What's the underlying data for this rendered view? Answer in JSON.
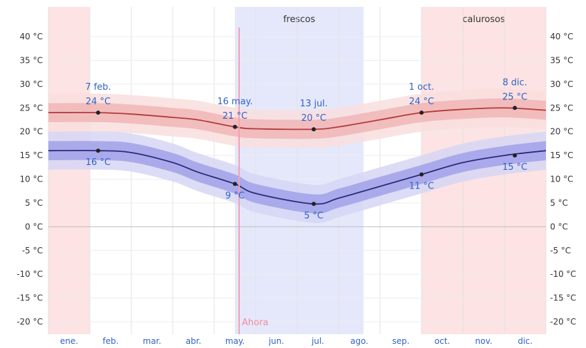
{
  "chart_data": {
    "type": "line",
    "title": "",
    "xlabel": "",
    "ylabel": "",
    "ylim": [
      -22,
      43
    ],
    "y_ticks": [
      "40 °C",
      "35 °C",
      "30 °C",
      "25 °C",
      "20 °C",
      "15 °C",
      "10 °C",
      "5 °C",
      "0 °C",
      "-5 °C",
      "-10 °C",
      "-15 °C",
      "-20 °C"
    ],
    "y_tick_values": [
      40,
      35,
      30,
      25,
      20,
      15,
      10,
      5,
      0,
      -5,
      -10,
      -15,
      -20
    ],
    "months": [
      "ene.",
      "feb.",
      "mar.",
      "abr.",
      "may.",
      "jun.",
      "jul.",
      "ago.",
      "sep.",
      "oct.",
      "nov.",
      "dic."
    ],
    "grid": true,
    "series": [
      {
        "role": "high",
        "color": "#b23a3a",
        "band_inner_color": "#f0b3b3",
        "band_outer_color": "#f9dede",
        "x": [
          0,
          1.2,
          2,
          3,
          3.6,
          4.5,
          5,
          6.4,
          7,
          8,
          9,
          10,
          11,
          12
        ],
        "values": [
          24,
          24,
          23.7,
          23,
          22.5,
          21,
          20.6,
          20.5,
          21,
          22.5,
          24,
          24.7,
          25,
          24.5
        ]
      },
      {
        "role": "low",
        "color": "#2a2a7a",
        "band_inner_color": "#9d9de8",
        "band_outer_color": "#d6d6f5",
        "x": [
          0,
          1.2,
          2,
          3,
          3.6,
          4.5,
          5,
          6.4,
          7,
          8,
          9,
          10,
          11,
          12
        ],
        "values": [
          16,
          16,
          15.6,
          13.5,
          11.5,
          9,
          7,
          4.8,
          6,
          8.5,
          11,
          13.5,
          15,
          16
        ]
      }
    ],
    "seasons": [
      {
        "label": "",
        "x_start": 0,
        "x_end": 1.0,
        "color": "#fde3e3"
      },
      {
        "label": "frescos",
        "x_start": 4.5,
        "x_end": 7.6,
        "color": "#e5e8fb"
      },
      {
        "label": "calurosos",
        "x_start": 9.0,
        "x_end": 12.0,
        "color": "#fde3e3"
      }
    ],
    "now": {
      "label": "Ahora",
      "x": 4.6
    },
    "annotations": [
      {
        "series": "high",
        "x": 1.2,
        "y": 24,
        "date": "7 feb.",
        "value": "24 °C",
        "pos": "above"
      },
      {
        "series": "high",
        "x": 4.5,
        "y": 21,
        "date": "16 may.",
        "value": "21 °C",
        "pos": "above"
      },
      {
        "series": "high",
        "x": 6.4,
        "y": 20.5,
        "date": "13 jul.",
        "value": "20 °C",
        "pos": "above"
      },
      {
        "series": "high",
        "x": 9.0,
        "y": 24,
        "date": "1 oct.",
        "value": "24 °C",
        "pos": "above"
      },
      {
        "series": "high",
        "x": 11.25,
        "y": 25,
        "date": "8 dic.",
        "value": "25 °C",
        "pos": "above"
      },
      {
        "series": "low",
        "x": 1.2,
        "y": 16,
        "date": "",
        "value": "16 °C",
        "pos": "below"
      },
      {
        "series": "low",
        "x": 4.5,
        "y": 9,
        "date": "",
        "value": "9 °C",
        "pos": "below"
      },
      {
        "series": "low",
        "x": 6.4,
        "y": 4.8,
        "date": "",
        "value": "5 °C",
        "pos": "below"
      },
      {
        "series": "low",
        "x": 9.0,
        "y": 11,
        "date": "",
        "value": "11 °C",
        "pos": "below"
      },
      {
        "series": "low",
        "x": 11.25,
        "y": 15,
        "date": "",
        "value": "15 °C",
        "pos": "below"
      }
    ]
  }
}
